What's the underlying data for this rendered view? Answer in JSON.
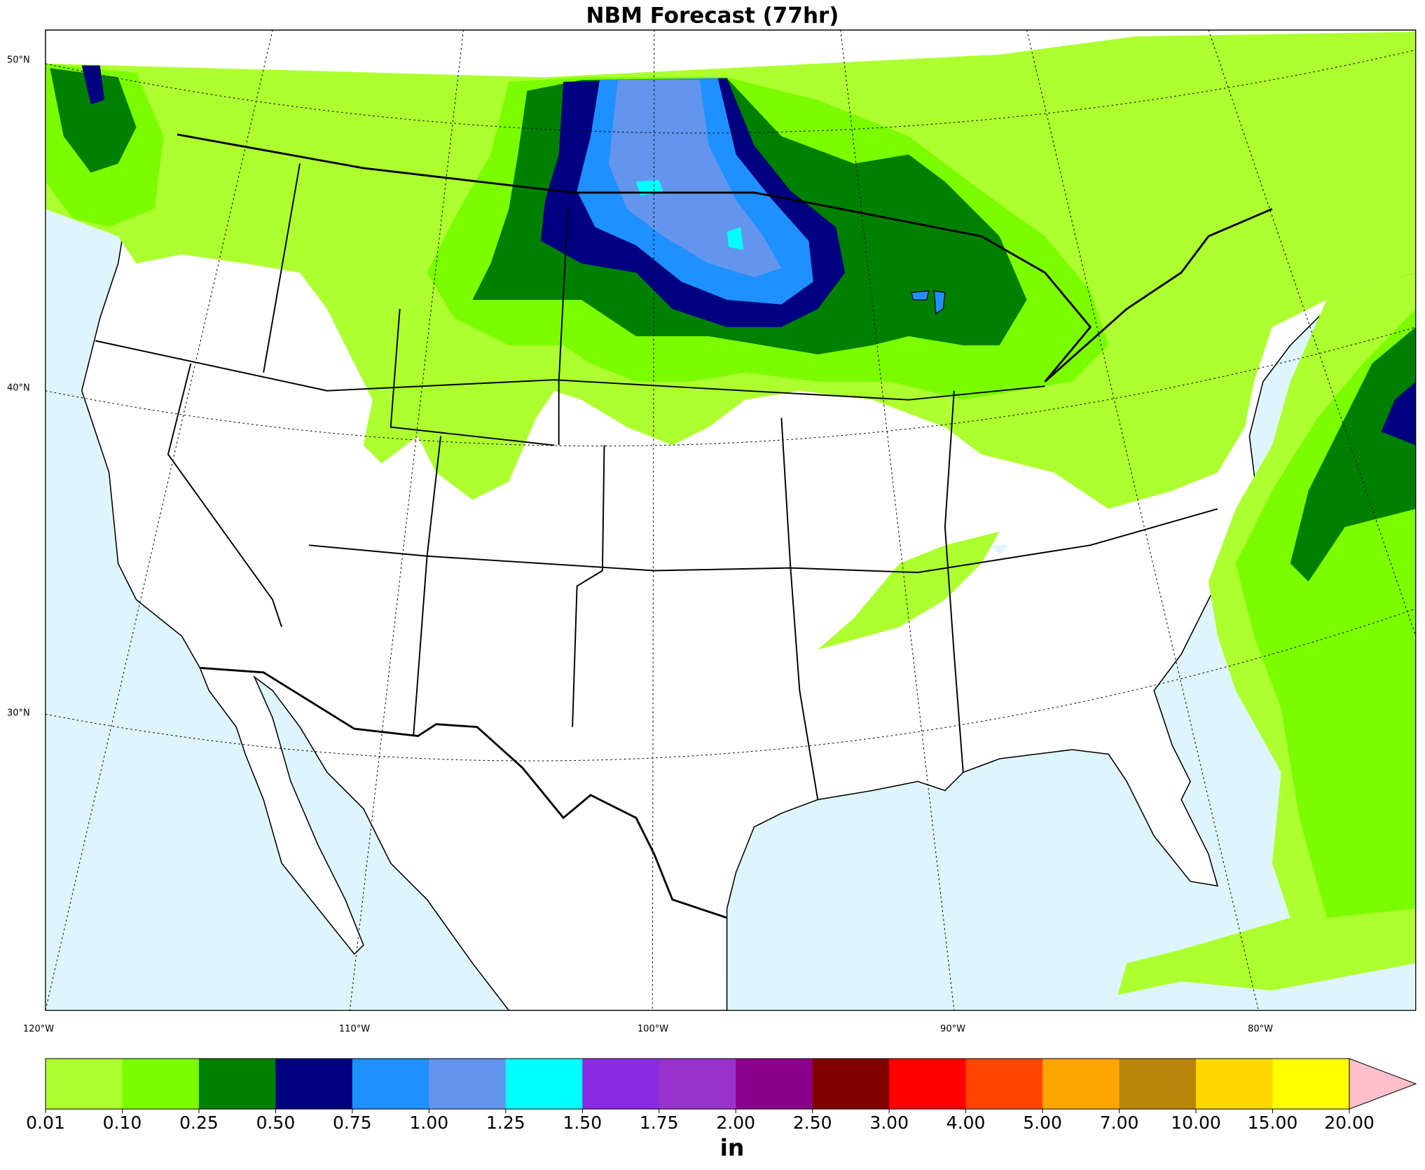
{
  "title": "NBM Forecast (77hr)",
  "latitude_labels": [
    "50°N",
    "40°N",
    "30°N"
  ],
  "longitude_labels": [
    "120°W",
    "110°W",
    "100°W",
    "90°W",
    "80°W"
  ],
  "colorbar": {
    "ticks": [
      "0.01",
      "0.10",
      "0.25",
      "0.50",
      "0.75",
      "1.00",
      "1.25",
      "1.50",
      "1.75",
      "2.00",
      "2.50",
      "3.00",
      "4.00",
      "5.00",
      "7.00",
      "10.00",
      "15.00",
      "20.00"
    ],
    "colors": [
      "#adff2f",
      "#7cfc00",
      "#008000",
      "#000080",
      "#1e90ff",
      "#6495ed",
      "#00ffff",
      "#8a2be2",
      "#9932cc",
      "#8b008b",
      "#800000",
      "#ff0000",
      "#ff4500",
      "#ffa500",
      "#b8860b",
      "#ffd700",
      "#ffff00"
    ],
    "extend_color": "#ffc0cb",
    "label": "in"
  }
}
